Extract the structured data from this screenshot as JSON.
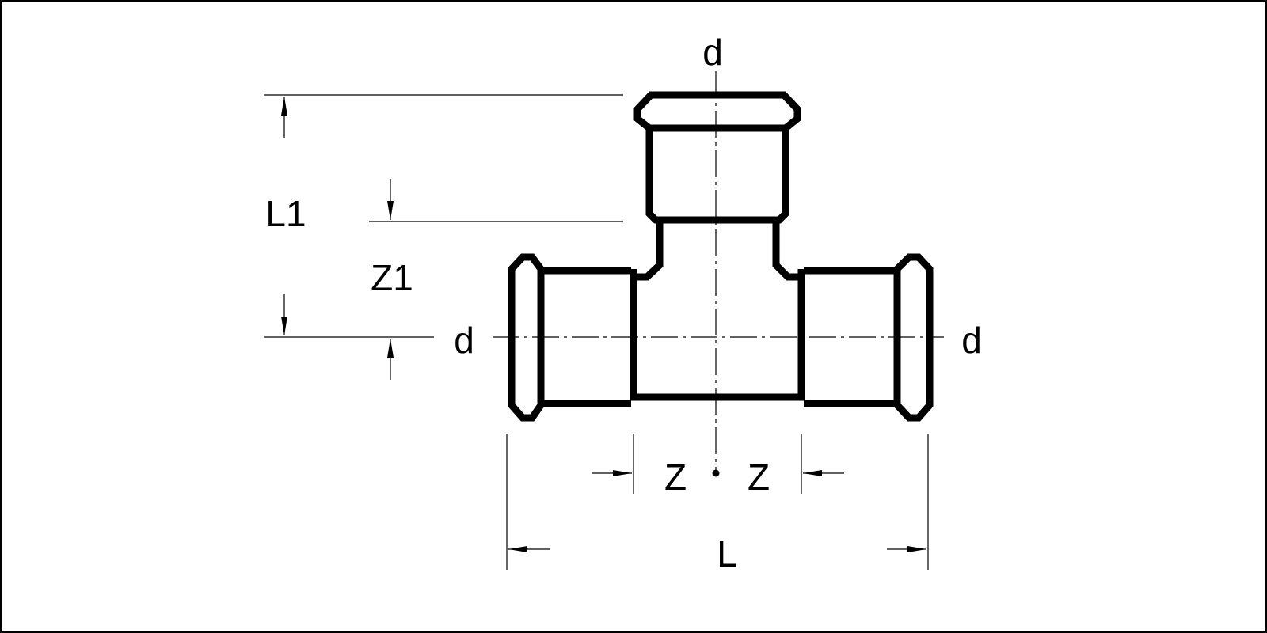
{
  "labels": {
    "d_top": "d",
    "d_left": "d",
    "d_right": "d",
    "L1": "L1",
    "Z1": "Z1",
    "Z_left": "Z",
    "Z_right": "Z",
    "L": "L"
  },
  "colors": {
    "stroke": "#000000",
    "background": "#ffffff"
  }
}
